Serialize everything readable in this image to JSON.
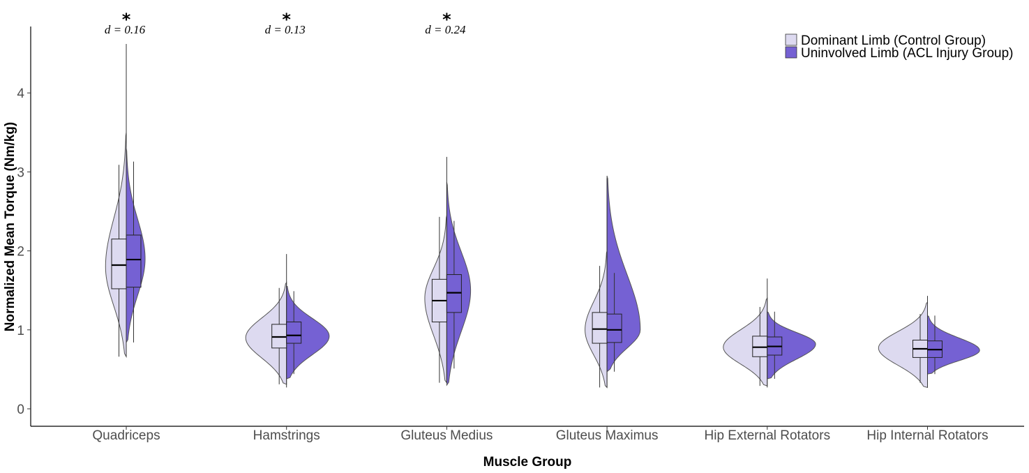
{
  "chart_data": {
    "type": "split-violin-box",
    "xlabel": "Muscle Group",
    "ylabel": "Normalized Mean Torque (Nm/kg)",
    "ylim": [
      -0.25,
      4.85
    ],
    "yticks": [
      0,
      1,
      2,
      3,
      4
    ],
    "grid": false,
    "legend_position": "top-right",
    "categories": [
      "Quadriceps",
      "Hamstrings",
      "Gluteus Medius",
      "Gluteus Maximus",
      "Hip External Rotators",
      "Hip Internal Rotators"
    ],
    "series": [
      {
        "name": "Dominant Limb (Control Group)",
        "color": "#dddaf0",
        "box": [
          {
            "min": 0.66,
            "q1": 1.52,
            "median": 1.82,
            "q3": 2.15,
            "max": 3.09
          },
          {
            "min": 0.31,
            "q1": 0.77,
            "median": 0.91,
            "q3": 1.07,
            "max": 1.53
          },
          {
            "min": 0.33,
            "q1": 1.1,
            "median": 1.37,
            "q3": 1.64,
            "max": 2.43
          },
          {
            "min": 0.27,
            "q1": 0.83,
            "median": 1.01,
            "q3": 1.22,
            "max": 1.81
          },
          {
            "min": 0.29,
            "q1": 0.66,
            "median": 0.78,
            "q3": 0.92,
            "max": 1.29
          },
          {
            "min": 0.33,
            "q1": 0.65,
            "median": 0.76,
            "q3": 0.87,
            "max": 1.2
          }
        ],
        "violin": [
          {
            "min": 0.66,
            "max": 3.5,
            "mode": 1.8,
            "max_half_width": 0.33
          },
          {
            "min": 0.31,
            "max": 1.6,
            "mode": 0.9,
            "max_half_width": 0.65
          },
          {
            "min": 0.33,
            "max": 2.45,
            "mode": 1.4,
            "max_half_width": 0.35
          },
          {
            "min": 0.27,
            "max": 2.0,
            "mode": 1.0,
            "max_half_width": 0.35
          },
          {
            "min": 0.29,
            "max": 1.4,
            "mode": 0.78,
            "max_half_width": 0.7
          },
          {
            "min": 0.27,
            "max": 1.35,
            "mode": 0.77,
            "max_half_width": 0.78
          }
        ]
      },
      {
        "name": "Uninvolved Limb (ACL Injury Group)",
        "color": "#7561d3",
        "box": [
          {
            "min": 0.84,
            "q1": 1.54,
            "median": 1.89,
            "q3": 2.2,
            "max": 3.13
          },
          {
            "min": 0.44,
            "q1": 0.83,
            "median": 0.93,
            "q3": 1.1,
            "max": 1.49
          },
          {
            "min": 0.51,
            "q1": 1.22,
            "median": 1.47,
            "q3": 1.7,
            "max": 2.38
          },
          {
            "min": 0.47,
            "q1": 0.84,
            "median": 1.0,
            "q3": 1.2,
            "max": 1.72
          },
          {
            "min": 0.38,
            "q1": 0.68,
            "median": 0.79,
            "q3": 0.91,
            "max": 1.23
          },
          {
            "min": 0.44,
            "q1": 0.65,
            "median": 0.75,
            "q3": 0.86,
            "max": 1.18
          }
        ],
        "violin": [
          {
            "min": 0.84,
            "max": 3.3,
            "mode": 1.9,
            "max_half_width": 0.3
          },
          {
            "min": 0.38,
            "max": 1.55,
            "mode": 0.92,
            "max_half_width": 0.68
          },
          {
            "min": 0.3,
            "max": 2.87,
            "mode": 1.5,
            "max_half_width": 0.38
          },
          {
            "min": 0.47,
            "max": 2.95,
            "mode": 1.0,
            "max_half_width": 0.53
          },
          {
            "min": 0.38,
            "max": 1.23,
            "mode": 0.82,
            "max_half_width": 0.77
          },
          {
            "min": 0.44,
            "max": 1.18,
            "mode": 0.74,
            "max_half_width": 0.83
          }
        ]
      }
    ],
    "outlier_whisker": [
      {
        "category": "Quadriceps",
        "min": 0.66,
        "max": 4.62
      },
      {
        "category": "Hamstrings",
        "min": 0.27,
        "max": 1.96
      },
      {
        "category": "Gluteus Medius",
        "min": 0.33,
        "max": 3.19
      },
      {
        "category": "Gluteus Maximus",
        "min": 0.27,
        "max": 2.92
      },
      {
        "category": "Hip External Rotators",
        "min": 0.27,
        "max": 1.65
      },
      {
        "category": "Hip Internal Rotators",
        "min": 0.27,
        "max": 1.43
      }
    ],
    "annotations": [
      {
        "category": "Quadriceps",
        "star": "*",
        "effect": "d = 0.16"
      },
      {
        "category": "Hamstrings",
        "star": "*",
        "effect": "d = 0.13"
      },
      {
        "category": "Gluteus Medius",
        "star": "*",
        "effect": "d = 0.24"
      }
    ]
  }
}
